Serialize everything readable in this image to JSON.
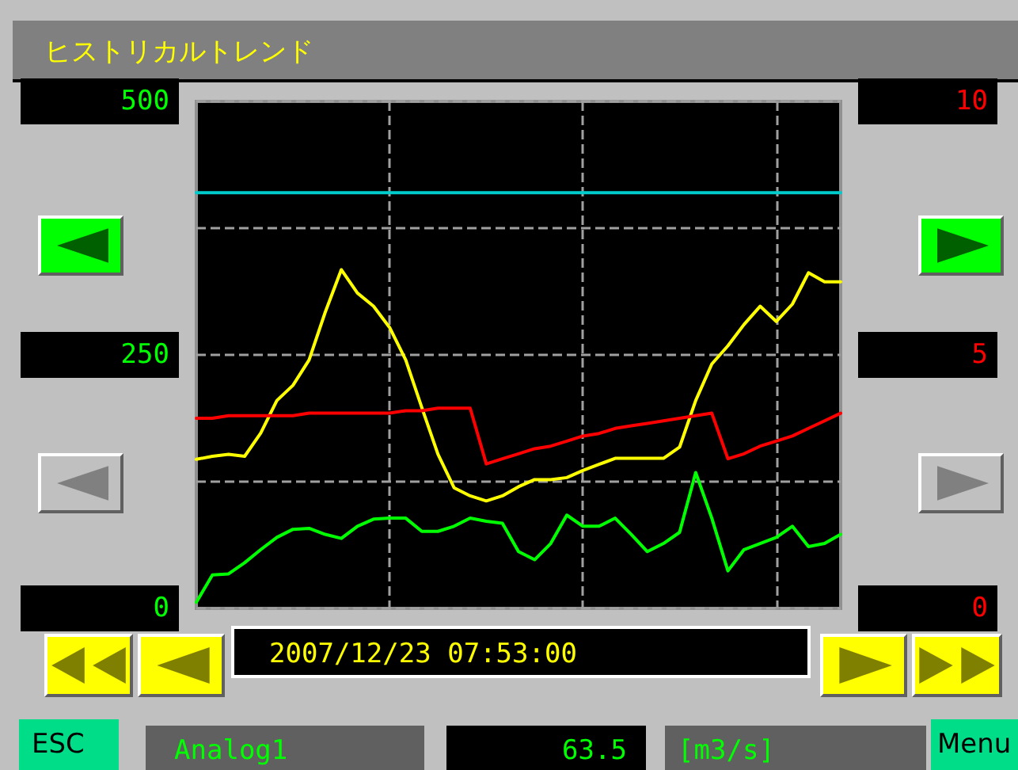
{
  "chart_data": {
    "type": "line",
    "title": "ヒストリカルトレンド",
    "categories": [
      null,
      null,
      null,
      null,
      null,
      null,
      null,
      null,
      null,
      null,
      null,
      null,
      null,
      null,
      null,
      null,
      null,
      null,
      null,
      null,
      null,
      null,
      null,
      null,
      null,
      null,
      null,
      null,
      null,
      null,
      null,
      null,
      null,
      null,
      null,
      null,
      null,
      null,
      null,
      null,
      null
    ],
    "series": [
      {
        "color": "#00cccc",
        "values": [
          410,
          410,
          410,
          410,
          410,
          410,
          410,
          410,
          410,
          410,
          410,
          410,
          410,
          410,
          410,
          410,
          410,
          410,
          410,
          410,
          410,
          410,
          410,
          410,
          410,
          410,
          410,
          410,
          410,
          410,
          410,
          410,
          410,
          410,
          410,
          410,
          410,
          410,
          410,
          410,
          410
        ]
      },
      {
        "color": "#ffff00",
        "values": [
          147,
          150,
          152,
          150,
          173,
          205,
          220,
          245,
          292,
          334,
          311,
          298,
          277,
          245,
          198,
          152,
          119,
          111,
          106,
          111,
          120,
          127,
          127,
          129,
          136,
          142,
          148,
          148,
          148,
          148,
          159,
          205,
          241,
          259,
          280,
          298,
          283,
          300,
          331,
          322,
          322
        ]
      },
      {
        "color": "#ff0000",
        "axis": "y2",
        "values": [
          3.75,
          3.75,
          3.8,
          3.8,
          3.8,
          3.8,
          3.8,
          3.85,
          3.85,
          3.85,
          3.85,
          3.85,
          3.85,
          3.9,
          3.9,
          3.95,
          3.95,
          3.95,
          2.85,
          2.95,
          3.05,
          3.15,
          3.2,
          3.3,
          3.4,
          3.45,
          3.55,
          3.6,
          3.65,
          3.7,
          3.75,
          3.8,
          3.85,
          2.95,
          3.05,
          3.2,
          3.3,
          3.4,
          3.55,
          3.7,
          3.85
        ]
      },
      {
        "color": "#00ff00",
        "values": [
          6,
          33,
          34,
          45,
          58,
          70,
          78,
          79,
          73,
          69,
          81,
          88,
          89,
          89,
          76,
          76,
          81,
          89,
          86,
          84,
          56,
          48,
          64,
          92,
          81,
          81,
          89,
          73,
          56,
          64,
          75,
          134,
          89,
          37,
          58,
          64,
          70,
          81,
          61,
          64,
          73
        ]
      }
    ],
    "ylim": [
      0,
      500
    ],
    "yticks": [
      0,
      {
        "value": 125,
        "label": null
      },
      250,
      {
        "value": 375,
        "label": null
      },
      500
    ],
    "y2lim": [
      0,
      10
    ],
    "y2ticks": [
      0,
      5,
      10
    ],
    "grid": true,
    "marker": "none",
    "line_style": "solid",
    "annotations": [
      "2007/12/23 07:53:00",
      "ESC",
      "Analog1",
      "63.5",
      "[m3/s]",
      "Menu"
    ]
  }
}
